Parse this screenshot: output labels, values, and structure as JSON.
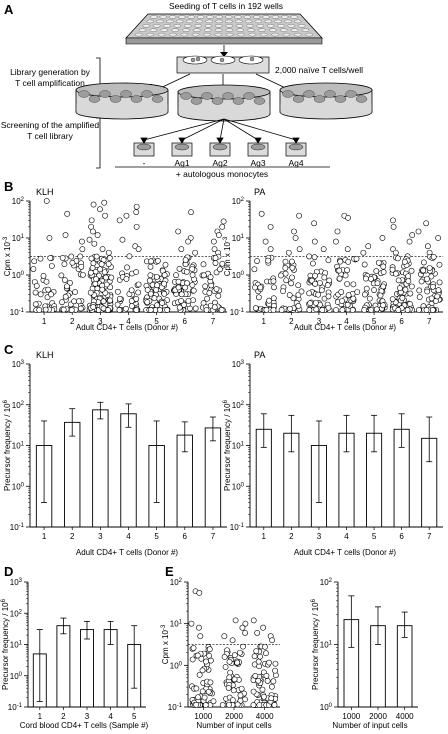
{
  "panels": {
    "a": {
      "letter": "A",
      "seeding_label": "Seeding of T cells in 192 wells",
      "naive_label": "2,000 naïve T cells/well",
      "library_line1": "Library generation by",
      "library_line2": "T cell amplification",
      "pha_label": "PHA + IL-2",
      "screen_line1": "Screening of the amplified",
      "screen_line2": "T cell library",
      "antigen_labels": [
        "-",
        "Ag1",
        "Ag2",
        "Ag3",
        "Ag4"
      ],
      "monocytes_label": "+ autologous monocytes"
    },
    "b": {
      "letter": "B",
      "left_title": "KLH",
      "right_title": "PA"
    },
    "c": {
      "letter": "C",
      "left_title": "KLH",
      "right_title": "PA"
    },
    "d": {
      "letter": "D"
    },
    "e": {
      "letter": "E"
    }
  },
  "chart_data": [
    {
      "type": "scatter",
      "title": "KLH",
      "panel": "B",
      "xlabel": "Adult CD4+ T cells (Donor #)",
      "ylabel": "Cpm x 10-3",
      "categories": [
        "1",
        "2",
        "3",
        "4",
        "5",
        "6",
        "7"
      ],
      "yscale": "log",
      "ylim": [
        0.1,
        100
      ],
      "yticks": [
        "10-1",
        "100",
        "101",
        "102"
      ],
      "threshold": 3.2,
      "above_threshold": [
        [
          100,
          10
        ],
        [
          45,
          12,
          8,
          5
        ],
        [
          90,
          80,
          60,
          40,
          30,
          20,
          15,
          12,
          9,
          7,
          5,
          4
        ],
        [
          70,
          50,
          40,
          30,
          20,
          9,
          6,
          5
        ],
        [],
        [
          50,
          15,
          10,
          8,
          5,
          4
        ],
        [
          28,
          20,
          15,
          12,
          8,
          5,
          4
        ]
      ],
      "below_counts": [
        35,
        45,
        140,
        35,
        80,
        55,
        45
      ]
    },
    {
      "type": "scatter",
      "title": "PA",
      "panel": "B",
      "xlabel": "Adult CD4+ T cells (Donor #)",
      "ylabel": "Cpm x 10-3",
      "categories": [
        "1",
        "2",
        "3",
        "4",
        "5",
        "6",
        "7"
      ],
      "yscale": "log",
      "ylim": [
        0.1,
        100
      ],
      "yticks": [
        "10-1",
        "100",
        "101",
        "102"
      ],
      "threshold": 3.2,
      "above_threshold": [
        [
          45,
          20,
          8,
          5
        ],
        [
          40,
          15,
          10,
          5,
          4
        ],
        [
          25,
          8,
          5
        ],
        [
          40,
          35,
          15,
          8,
          5
        ],
        [
          10,
          6,
          4
        ],
        [
          30,
          20,
          12,
          8,
          5,
          4
        ],
        [
          25,
          15,
          10,
          6,
          4
        ]
      ],
      "below_counts": [
        40,
        40,
        55,
        45,
        55,
        75,
        60
      ]
    },
    {
      "type": "bar",
      "title": "KLH",
      "panel": "C",
      "xlabel": "Adult CD4+ T cells (Donor #)",
      "ylabel": "Precursor frequency / 106",
      "categories": [
        "1",
        "2",
        "3",
        "4",
        "5",
        "6",
        "7"
      ],
      "yscale": "log",
      "ylim": [
        0.1,
        1000
      ],
      "yticks": [
        "10-1",
        "100",
        "101",
        "102",
        "103"
      ],
      "values": [
        10,
        37,
        75,
        60,
        10,
        18,
        27
      ],
      "err_low": [
        0.4,
        17,
        45,
        28,
        0.4,
        7,
        13
      ],
      "err_high": [
        40,
        80,
        115,
        105,
        40,
        38,
        50
      ]
    },
    {
      "type": "bar",
      "title": "PA",
      "panel": "C",
      "xlabel": "Adult CD4+ T cells (Donor #)",
      "ylabel": "Precursor frequency / 106",
      "categories": [
        "1",
        "2",
        "3",
        "4",
        "5",
        "6",
        "7"
      ],
      "yscale": "log",
      "ylim": [
        0.1,
        1000
      ],
      "yticks": [
        "10-1",
        "100",
        "101",
        "102",
        "103"
      ],
      "values": [
        25,
        20,
        10,
        20,
        20,
        25,
        15
      ],
      "err_low": [
        9,
        7,
        0.4,
        7,
        7,
        9,
        4
      ],
      "err_high": [
        60,
        55,
        40,
        55,
        55,
        60,
        50
      ]
    },
    {
      "type": "bar",
      "panel": "D",
      "xlabel": "Cord blood CD4+ T cells (Sample #)",
      "ylabel": "Precursor frequency / 106",
      "categories": [
        "1",
        "2",
        "3",
        "4",
        "5"
      ],
      "yscale": "log",
      "ylim": [
        0.1,
        1000
      ],
      "yticks": [
        "10-1",
        "100",
        "101",
        "102",
        "103"
      ],
      "values": [
        5,
        40,
        30,
        30,
        10
      ],
      "err_low": [
        0.15,
        22,
        15,
        10,
        0.4
      ],
      "err_high": [
        30,
        70,
        55,
        55,
        40
      ]
    },
    {
      "type": "scatter",
      "panel": "E",
      "xlabel": "Number of input cells",
      "ylabel": "Cpm x 10-3",
      "categories": [
        "1000",
        "2000",
        "4000"
      ],
      "yscale": "log",
      "ylim": [
        0.1,
        100
      ],
      "yticks": [
        "10-1",
        "100",
        "101",
        "102"
      ],
      "threshold": 3.2,
      "above_threshold": [
        [
          60,
          55,
          10,
          8,
          5
        ],
        [
          12,
          10,
          8,
          6,
          5,
          4
        ],
        [
          12,
          8,
          6,
          5,
          4
        ]
      ],
      "below_counts": [
        60,
        55,
        70
      ]
    },
    {
      "type": "bar",
      "panel": "E",
      "xlabel": "Number of input cells",
      "ylabel": "Precursor frequency / 106",
      "categories": [
        "1000",
        "2000",
        "4000"
      ],
      "yscale": "log",
      "ylim": [
        1,
        100
      ],
      "yticks": [
        "100",
        "101",
        "102"
      ],
      "values": [
        25,
        20,
        20
      ],
      "err_low": [
        9,
        10,
        13
      ],
      "err_high": [
        60,
        40,
        33
      ]
    }
  ]
}
